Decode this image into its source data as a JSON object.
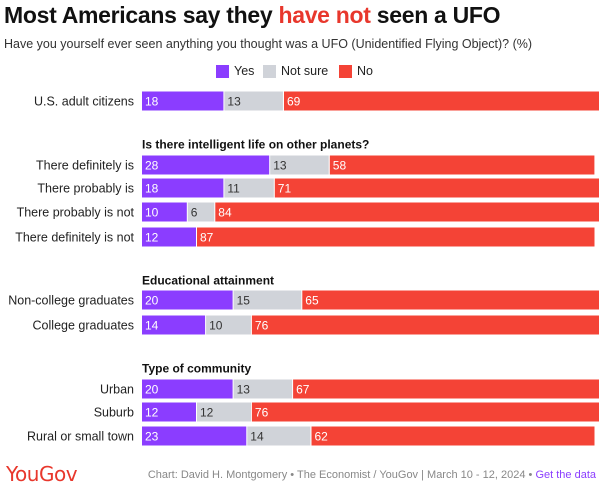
{
  "header": {
    "title_pre": "Most Americans say they ",
    "title_highlight": "have not",
    "title_post": " seen a UFO",
    "subtitle": "Have you yourself ever seen anything you thought was a UFO (Unidentified Flying Object)? (%)"
  },
  "colors": {
    "yes": "#8b3dff",
    "not_sure": "#d0d3d9",
    "no": "#f44336",
    "highlight": "#e8372c"
  },
  "chart_data": {
    "type": "bar",
    "orientation": "horizontal",
    "stacked": true,
    "legend_position": "top",
    "xlim": [
      0,
      100
    ],
    "series_names": [
      "Yes",
      "Not sure",
      "No"
    ],
    "groups": [
      {
        "heading": "",
        "rows": [
          {
            "label": "U.S. adult citizens",
            "values": [
              18,
              13,
              69
            ]
          }
        ]
      },
      {
        "heading": "Is there intelligent life on other planets?",
        "rows": [
          {
            "label": "There definitely is",
            "values": [
              28,
              13,
              58
            ]
          },
          {
            "label": "There probably is",
            "values": [
              18,
              11,
              71
            ]
          },
          {
            "label": "There probably is not",
            "values": [
              10,
              6,
              84
            ]
          },
          {
            "label": "There definitely is not",
            "values": [
              12,
              0,
              87
            ]
          }
        ]
      },
      {
        "heading": "Educational attainment",
        "rows": [
          {
            "label": "Non-college graduates",
            "values": [
              20,
              15,
              65
            ]
          },
          {
            "label": "College graduates",
            "values": [
              14,
              10,
              76
            ]
          }
        ]
      },
      {
        "heading": "Type of community",
        "rows": [
          {
            "label": "Urban",
            "values": [
              20,
              13,
              67
            ]
          },
          {
            "label": "Suburb",
            "values": [
              12,
              12,
              76
            ]
          },
          {
            "label": "Rural or small town",
            "values": [
              23,
              14,
              62
            ]
          }
        ]
      }
    ]
  },
  "footer": {
    "logo": "YouGov",
    "source": "Chart: David H. Montgomery • The Economist / YouGov | March 10 - 12, 2024 • ",
    "link": "Get the data"
  }
}
